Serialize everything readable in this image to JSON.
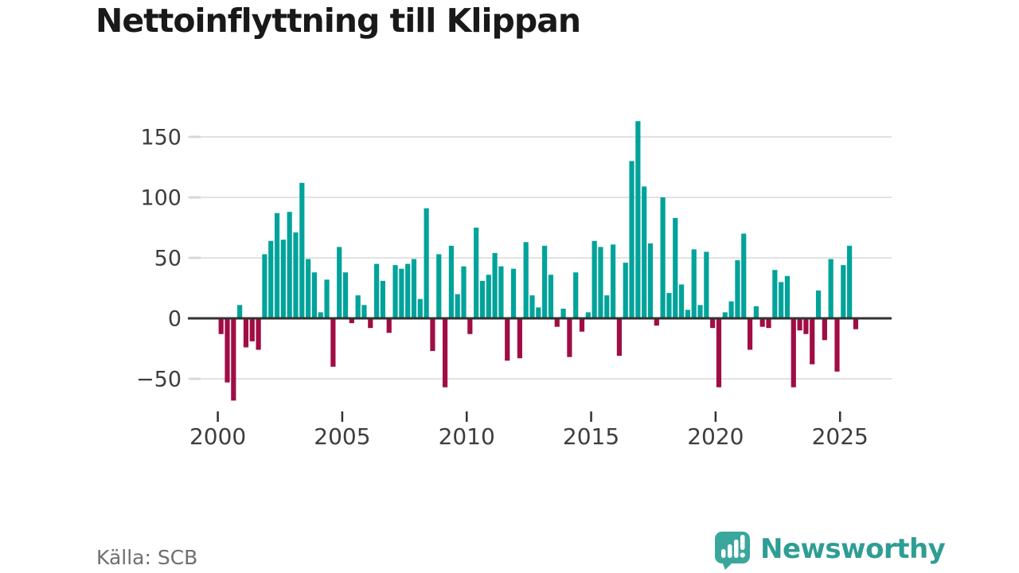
{
  "title": "Nettoinflyttning till Klippan",
  "source_note": "Källa: SCB",
  "brand": {
    "name": "Newsworthy",
    "icon": "newsworthy-chart-bubble-icon",
    "icon_color": "#3ba79c",
    "text_color": "#2f9d94"
  },
  "colors": {
    "positive_bar": "#00a39a",
    "negative_bar": "#a00d45",
    "zero_axis": "#323232",
    "gridline": "#e2e2e2",
    "y_dash": "#d7d7d7",
    "tick_label": "#3d3d3d",
    "title_text": "#191919",
    "source_text": "#6f6f6f"
  },
  "chart_data": {
    "type": "bar",
    "title": "Nettoinflyttning till Klippan",
    "frequency": "quarterly",
    "start": "2000 Q1",
    "end": "2025 Q3",
    "values": [
      -13,
      -53,
      -68,
      11,
      -24,
      -19,
      -26,
      53,
      64,
      87,
      65,
      88,
      71,
      112,
      49,
      38,
      5,
      32,
      -40,
      59,
      38,
      -4,
      19,
      11,
      -8,
      45,
      31,
      -12,
      44,
      41,
      45,
      49,
      16,
      91,
      -27,
      53,
      -57,
      60,
      20,
      43,
      -13,
      75,
      31,
      36,
      54,
      43,
      -35,
      41,
      -33,
      63,
      19,
      9,
      60,
      36,
      -7,
      8,
      -32,
      38,
      -11,
      5,
      64,
      59,
      19,
      61,
      -31,
      46,
      130,
      163,
      109,
      62,
      -6,
      100,
      21,
      83,
      28,
      7,
      57,
      11,
      55,
      -8,
      -57,
      5,
      14,
      48,
      70,
      -26,
      10,
      -7,
      -8,
      40,
      30,
      35,
      -57,
      -10,
      -13,
      -38,
      23,
      -18,
      49,
      -44,
      44,
      60,
      -9
    ],
    "x_tick_labels": [
      "2000",
      "2005",
      "2010",
      "2015",
      "2020",
      "2025"
    ],
    "x_tick_years": [
      2000,
      2005,
      2010,
      2015,
      2020,
      2025
    ],
    "y_ticks": [
      150,
      100,
      50,
      0,
      -50
    ],
    "ylim": [
      -80,
      170
    ],
    "grid": "horizontal",
    "legend": "none",
    "ylabel": "",
    "xlabel": ""
  }
}
